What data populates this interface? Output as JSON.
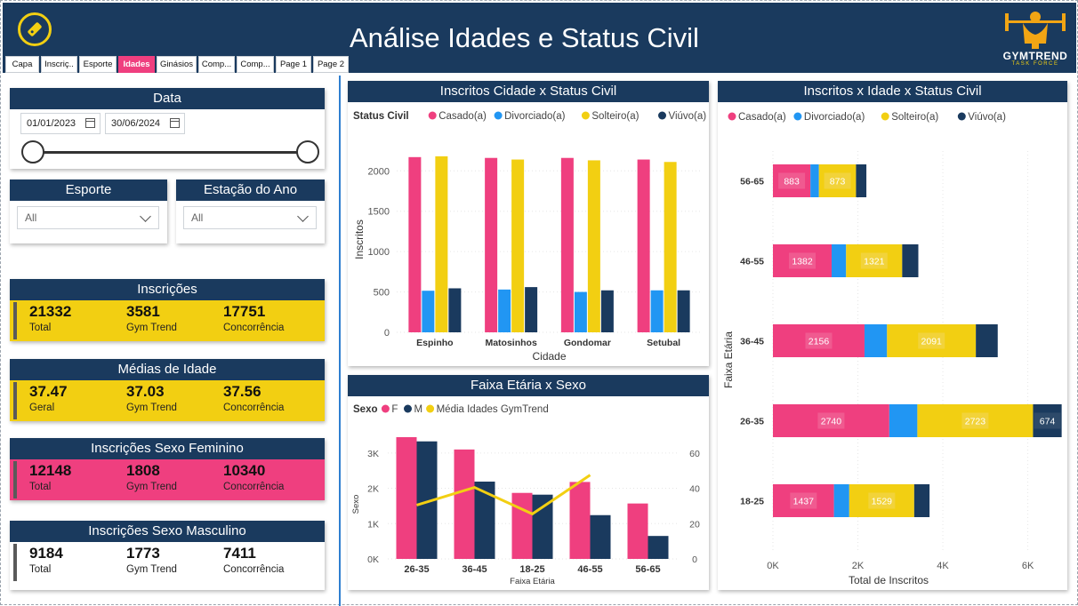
{
  "header": {
    "title": "Análise Idades e Status Civil",
    "brand": "GYMTREND",
    "brand_sub": "TASK FORCE",
    "tabs": [
      "Capa",
      "Inscriç..",
      "Esporte",
      "Idades",
      "Ginásios",
      "Comp...",
      "Comp...",
      "Page 1",
      "Page 2"
    ],
    "active_tab": "Idades"
  },
  "filters": {
    "date": {
      "title": "Data",
      "start": "01/01/2023",
      "end": "30/06/2024"
    },
    "esporte": {
      "title": "Esporte",
      "value": "All"
    },
    "estacao": {
      "title": "Estação do Ano",
      "value": "All"
    }
  },
  "kpis": [
    {
      "title": "Inscrições",
      "band_color": "#f2cf12",
      "values": [
        "21332",
        "3581",
        "17751"
      ],
      "labels": [
        "Total",
        "Gym Trend",
        "Concorrência"
      ]
    },
    {
      "title": "Médias de Idade",
      "band_color": "#f2cf12",
      "values": [
        "37.47",
        "37.03",
        "37.56"
      ],
      "labels": [
        "Geral",
        "Gym Trend",
        "Concorrência"
      ]
    },
    {
      "title": "Inscrições Sexo Feminino",
      "band_color": "#ef3f7f",
      "values": [
        "12148",
        "1808",
        "10340"
      ],
      "labels": [
        "Total",
        "Gym Trend",
        "Concorrência"
      ]
    },
    {
      "title": "Inscrições Sexo Masculino",
      "band_color": "#ffffff",
      "values": [
        "9184",
        "1773",
        "7411"
      ],
      "labels": [
        "Total",
        "Gym Trend",
        "Concorrência"
      ]
    }
  ],
  "colors": {
    "casado": "#ef3f7f",
    "divorciado": "#2196f3",
    "solteiro": "#f2cf12",
    "viuvo": "#1a3a5e",
    "female": "#ef3f7f",
    "male": "#1a3a5e",
    "avg_line": "#f2cf12"
  },
  "chart_data": [
    {
      "type": "bar",
      "title": "Inscritos Cidade x Status Civil",
      "legend_title": "Status Civil",
      "legend_position": "top-left",
      "xlabel": "Cidade",
      "ylabel": "Inscritos",
      "ylim": [
        0,
        2300
      ],
      "yticks": [
        0,
        500,
        1000,
        1500,
        2000
      ],
      "categories": [
        "Espinho",
        "Matosinhos",
        "Gondomar",
        "Setubal"
      ],
      "series": [
        {
          "name": "Casado(a)",
          "values": [
            2170,
            2160,
            2160,
            2140
          ]
        },
        {
          "name": "Divorciado(a)",
          "values": [
            515,
            530,
            500,
            520
          ]
        },
        {
          "name": "Solteiro(a)",
          "values": [
            2180,
            2140,
            2130,
            2110
          ]
        },
        {
          "name": "Viúvo(a)",
          "values": [
            545,
            560,
            520,
            520
          ]
        }
      ]
    },
    {
      "type": "bar",
      "title": "Faixa Etária x Sexo",
      "legend_title": "Sexo",
      "legend_position": "top-left",
      "xlabel": "Faixa Etária",
      "ylabel": "Sexo",
      "ylim": [
        0,
        3600
      ],
      "yticks": [
        "0K",
        "1K",
        "2K",
        "3K"
      ],
      "y2lim": [
        0,
        72
      ],
      "y2ticks": [
        0,
        20,
        40,
        60
      ],
      "categories": [
        "26-35",
        "36-45",
        "18-25",
        "46-55",
        "56-65"
      ],
      "series": [
        {
          "name": "F",
          "values": [
            3450,
            3100,
            1870,
            2180,
            1570
          ]
        },
        {
          "name": "M",
          "values": [
            3330,
            2190,
            1820,
            1240,
            650
          ]
        },
        {
          "name": "Média Idades GymTrend",
          "values": [
            30.5,
            40.5,
            25.5,
            47.5,
            null
          ]
        }
      ]
    },
    {
      "type": "bar",
      "orientation": "horizontal-stacked",
      "title": "Inscritos x Idade x Status Civil",
      "legend_position": "top-left",
      "xlabel": "Total de Inscritos",
      "ylabel": "Faixa Etária",
      "xlim": [
        0,
        6700
      ],
      "xticks": [
        "0K",
        "2K",
        "4K",
        "6K"
      ],
      "categories": [
        "56-65",
        "46-55",
        "36-45",
        "26-35",
        "18-25"
      ],
      "series": [
        {
          "name": "Casado(a)",
          "values": [
            883,
            1382,
            2156,
            2740,
            1437
          ]
        },
        {
          "name": "Divorciado(a)",
          "values": [
            200,
            340,
            530,
            660,
            360
          ]
        },
        {
          "name": "Solteiro(a)",
          "values": [
            873,
            1321,
            2091,
            2723,
            1529
          ]
        },
        {
          "name": "Viúvo(a)",
          "values": [
            244,
            380,
            515,
            674,
            361
          ]
        }
      ],
      "data_labels": {
        "56-65": [
          "883",
          "",
          "873",
          ""
        ],
        "46-55": [
          "1382",
          "",
          "1321",
          ""
        ],
        "36-45": [
          "2156",
          "",
          "2091",
          ""
        ],
        "26-35": [
          "2740",
          "",
          "2723",
          "674"
        ],
        "18-25": [
          "1437",
          "",
          "1529",
          ""
        ]
      }
    }
  ]
}
